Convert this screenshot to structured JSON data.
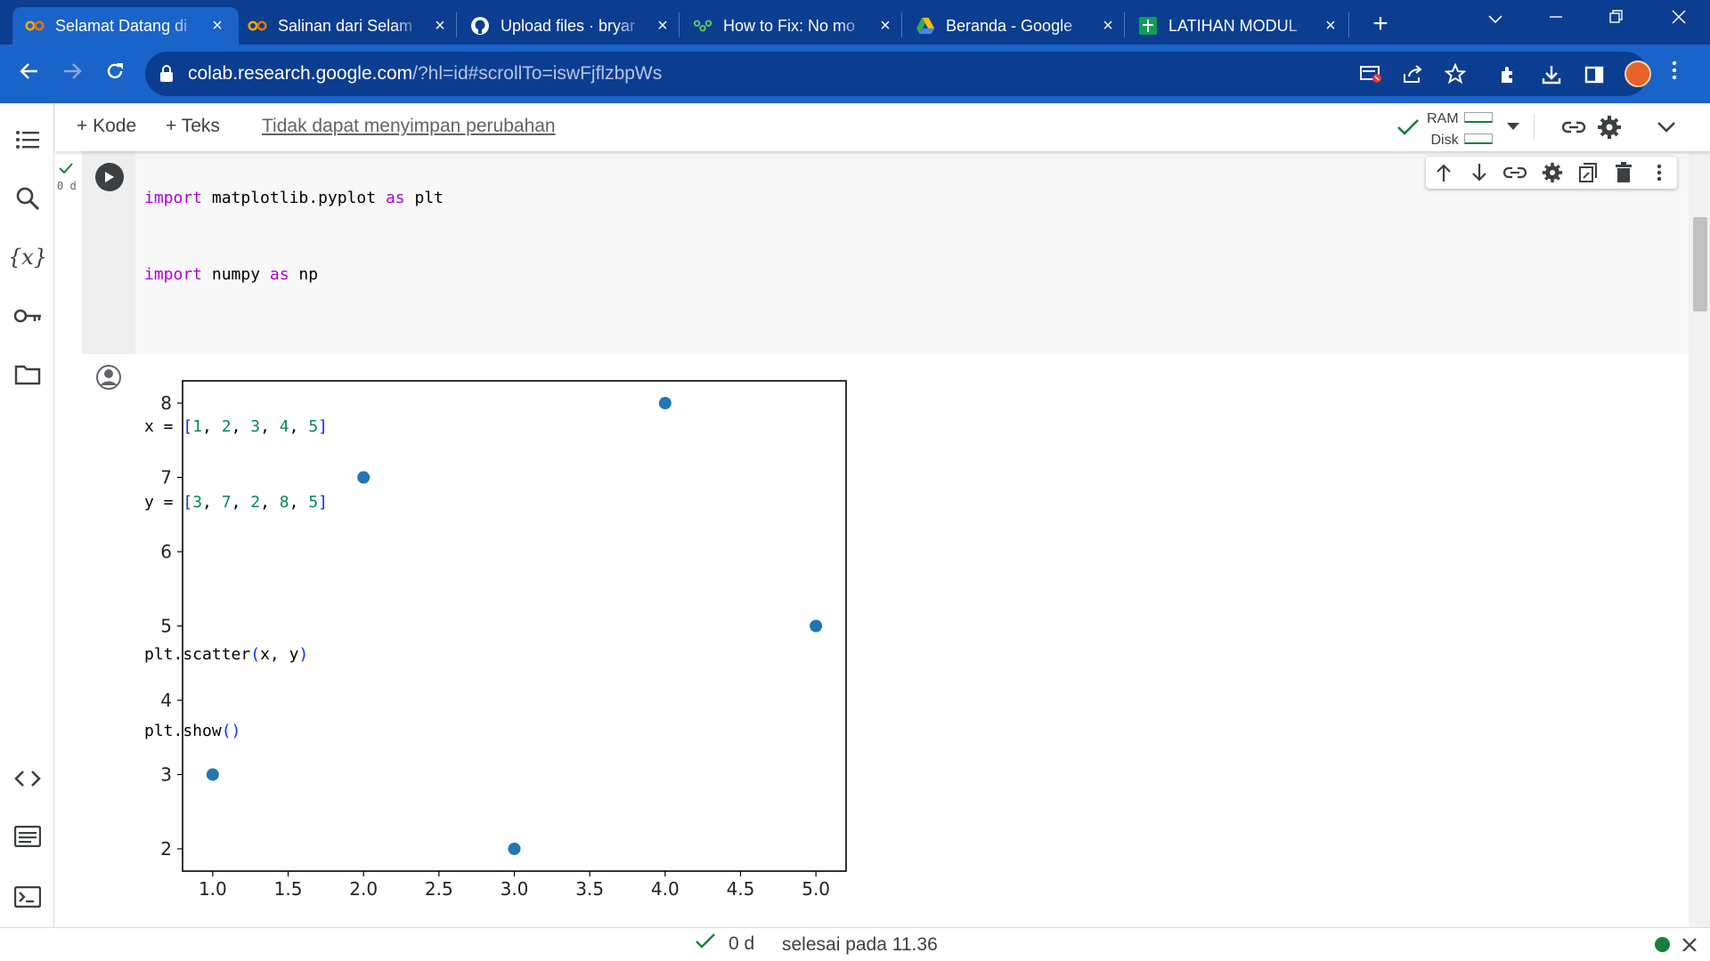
{
  "browser": {
    "tabs": [
      {
        "title": "Selamat Datang di",
        "icon": "colab-icon"
      },
      {
        "title": "Salinan dari Selam",
        "icon": "colab-icon"
      },
      {
        "title": "Upload files · bryar",
        "icon": "github-icon"
      },
      {
        "title": "How to Fix: No mo",
        "icon": "python-icon"
      },
      {
        "title": "Beranda - Google",
        "icon": "drive-icon"
      },
      {
        "title": "LATIHAN MODUL",
        "icon": "sheets-icon"
      }
    ],
    "close_glyph": "×",
    "new_tab_glyph": "+",
    "url_host": "colab.research.google.com",
    "url_rest": "/?hl=id#scrollTo=iswFjflzbpWs"
  },
  "colab": {
    "toolbar": {
      "add_code": "+ Kode",
      "add_text": "+ Teks",
      "save_warning": "Tidak dapat menyimpan perubahan",
      "ram_label": "RAM",
      "disk_label": "Disk"
    },
    "cell": {
      "exec_time": "0 d",
      "code_lines": [
        "import matplotlib.pyplot as plt",
        "import numpy as np",
        "",
        "x = [1, 2, 3, 4, 5]",
        "y = [3, 7, 2, 8, 5]",
        "",
        "plt.scatter(x, y)",
        "plt.show()"
      ]
    },
    "status": {
      "time": "0 d",
      "text": "selesai pada 11.36"
    }
  },
  "colors": {
    "point": "#1f77b4",
    "chrome_dark": "#0b3d91",
    "chrome_light": "#1a63c8",
    "status_green": "#188038"
  },
  "chart_data": {
    "type": "scatter",
    "x": [
      1,
      2,
      3,
      4,
      5
    ],
    "y": [
      3,
      7,
      2,
      8,
      5
    ],
    "xlim": [
      0.8,
      5.2
    ],
    "ylim": [
      1.7,
      8.3
    ],
    "xticks": [
      "1.0",
      "1.5",
      "2.0",
      "2.5",
      "3.0",
      "3.5",
      "4.0",
      "4.5",
      "5.0"
    ],
    "yticks": [
      "2",
      "3",
      "4",
      "5",
      "6",
      "7",
      "8"
    ],
    "title": "",
    "xlabel": "",
    "ylabel": "",
    "grid": false
  }
}
